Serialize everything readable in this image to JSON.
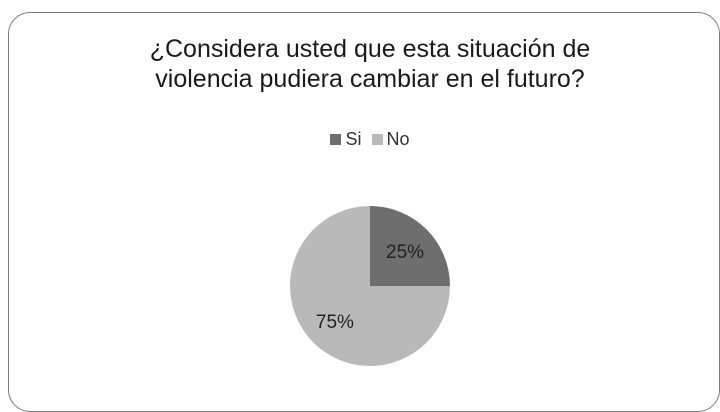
{
  "chart_data": {
    "type": "pie",
    "title_lines": [
      "¿Considera usted que esta situación de",
      "violencia pudiera cambiar en el futuro?"
    ],
    "categories": [
      "Si",
      "No"
    ],
    "values": [
      25,
      75
    ],
    "data_labels": [
      "25%",
      "75%"
    ],
    "colors": [
      "#6e6e6e",
      "#b9b9b9"
    ],
    "legend_position": "top",
    "start_angle": "12 o'clock, clockwise"
  }
}
